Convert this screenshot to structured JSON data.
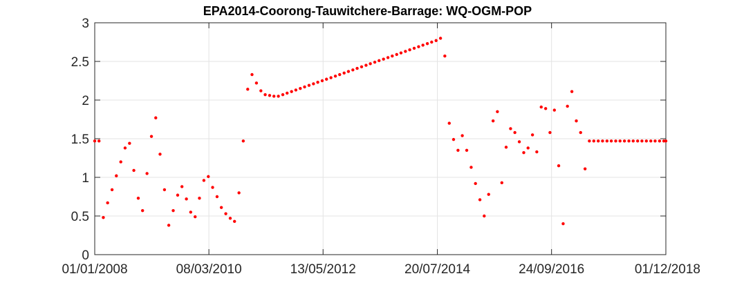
{
  "chart_data": {
    "type": "scatter",
    "title": "EPA2014-Coorong-Tauwitchere-Barrage: WQ-OGM-POP",
    "xlabel": "",
    "ylabel": "",
    "x_axis": {
      "type": "date",
      "range": [
        "2008-01-01",
        "2018-12-01"
      ],
      "ticks": [
        "2008-01-01",
        "2010-03-08",
        "2012-05-13",
        "2014-07-20",
        "2016-09-24",
        "2018-12-01"
      ],
      "tick_labels": [
        "01/01/2008",
        "08/03/2010",
        "13/05/2012",
        "20/07/2014",
        "24/09/2016",
        "01/12/2018"
      ]
    },
    "y_axis": {
      "range": [
        0,
        3
      ],
      "ticks": [
        0,
        0.5,
        1,
        1.5,
        2,
        2.5,
        3
      ],
      "tick_labels": [
        "0",
        "0.5",
        "1",
        "1.5",
        "2",
        "2.5",
        "3"
      ]
    },
    "grid": true,
    "marker_color": "#ff0000",
    "series": [
      {
        "points": [
          [
            "2008-01-01",
            1.47
          ],
          [
            "2008-01-31",
            1.47
          ],
          [
            "2008-03-01",
            0.48
          ],
          [
            "2008-03-31",
            0.67
          ],
          [
            "2008-05-01",
            0.84
          ],
          [
            "2008-05-31",
            1.02
          ],
          [
            "2008-07-01",
            1.2
          ],
          [
            "2008-07-31",
            1.38
          ],
          [
            "2008-08-31",
            1.44
          ],
          [
            "2008-09-30",
            1.09
          ],
          [
            "2008-10-31",
            0.73
          ],
          [
            "2008-11-30",
            0.57
          ],
          [
            "2008-12-31",
            1.05
          ],
          [
            "2009-01-31",
            1.53
          ],
          [
            "2009-03-02",
            1.77
          ],
          [
            "2009-04-01",
            1.3
          ],
          [
            "2009-05-02",
            0.84
          ],
          [
            "2009-06-01",
            0.38
          ],
          [
            "2009-07-02",
            0.57
          ],
          [
            "2009-08-02",
            0.77
          ],
          [
            "2009-09-01",
            0.88
          ],
          [
            "2009-10-02",
            0.72
          ],
          [
            "2009-11-01",
            0.55
          ],
          [
            "2009-12-02",
            0.49
          ],
          [
            "2010-01-01",
            0.73
          ],
          [
            "2010-02-01",
            0.96
          ],
          [
            "2010-03-04",
            1.01
          ],
          [
            "2010-04-03",
            0.87
          ],
          [
            "2010-05-04",
            0.75
          ],
          [
            "2010-06-03",
            0.61
          ],
          [
            "2010-07-04",
            0.53
          ],
          [
            "2010-08-04",
            0.47
          ],
          [
            "2010-09-03",
            0.43
          ],
          [
            "2010-10-04",
            0.8
          ],
          [
            "2010-11-03",
            1.47
          ],
          [
            "2010-12-04",
            2.14
          ],
          [
            "2011-01-03",
            2.33
          ],
          [
            "2011-02-03",
            2.22
          ],
          [
            "2011-03-06",
            2.12
          ],
          [
            "2011-04-05",
            2.07
          ],
          [
            "2011-05-06",
            2.06
          ],
          [
            "2011-06-05",
            2.05
          ],
          [
            "2011-07-06",
            2.05
          ],
          [
            "2011-08-06",
            2.07
          ],
          [
            "2011-09-05",
            2.09
          ],
          [
            "2011-10-06",
            2.11
          ],
          [
            "2011-11-05",
            2.13
          ],
          [
            "2011-12-06",
            2.15
          ],
          [
            "2012-01-05",
            2.17
          ],
          [
            "2012-02-05",
            2.19
          ],
          [
            "2012-03-07",
            2.21
          ],
          [
            "2012-04-06",
            2.23
          ],
          [
            "2012-05-07",
            2.25
          ],
          [
            "2012-06-06",
            2.27
          ],
          [
            "2012-07-07",
            2.29
          ],
          [
            "2012-08-07",
            2.31
          ],
          [
            "2012-09-06",
            2.33
          ],
          [
            "2012-10-07",
            2.35
          ],
          [
            "2012-11-06",
            2.37
          ],
          [
            "2012-12-07",
            2.39
          ],
          [
            "2013-01-06",
            2.41
          ],
          [
            "2013-02-06",
            2.43
          ],
          [
            "2013-03-09",
            2.45
          ],
          [
            "2013-04-08",
            2.47
          ],
          [
            "2013-05-09",
            2.49
          ],
          [
            "2013-06-08",
            2.51
          ],
          [
            "2013-07-09",
            2.53
          ],
          [
            "2013-08-09",
            2.55
          ],
          [
            "2013-09-08",
            2.57
          ],
          [
            "2013-10-09",
            2.59
          ],
          [
            "2013-11-08",
            2.61
          ],
          [
            "2013-12-09",
            2.63
          ],
          [
            "2014-01-08",
            2.65
          ],
          [
            "2014-02-08",
            2.67
          ],
          [
            "2014-03-11",
            2.69
          ],
          [
            "2014-04-10",
            2.71
          ],
          [
            "2014-05-11",
            2.73
          ],
          [
            "2014-06-10",
            2.75
          ],
          [
            "2014-07-11",
            2.77
          ],
          [
            "2014-08-11",
            2.8
          ],
          [
            "2014-09-10",
            2.57
          ],
          [
            "2014-10-11",
            1.7
          ],
          [
            "2014-11-10",
            1.49
          ],
          [
            "2014-12-11",
            1.35
          ],
          [
            "2015-01-10",
            1.54
          ],
          [
            "2015-02-10",
            1.35
          ],
          [
            "2015-03-13",
            1.13
          ],
          [
            "2015-04-12",
            0.92
          ],
          [
            "2015-05-13",
            0.71
          ],
          [
            "2015-06-12",
            0.5
          ],
          [
            "2015-07-13",
            0.78
          ],
          [
            "2015-08-13",
            1.73
          ],
          [
            "2015-09-12",
            1.85
          ],
          [
            "2015-10-13",
            0.93
          ],
          [
            "2015-11-12",
            1.39
          ],
          [
            "2015-12-13",
            1.63
          ],
          [
            "2016-01-12",
            1.58
          ],
          [
            "2016-02-12",
            1.46
          ],
          [
            "2016-03-14",
            1.32
          ],
          [
            "2016-04-13",
            1.38
          ],
          [
            "2016-05-14",
            1.55
          ],
          [
            "2016-06-13",
            1.33
          ],
          [
            "2016-07-14",
            1.91
          ],
          [
            "2016-08-14",
            1.89
          ],
          [
            "2016-09-13",
            1.58
          ],
          [
            "2016-10-14",
            1.87
          ],
          [
            "2016-11-13",
            1.15
          ],
          [
            "2016-12-14",
            0.4
          ],
          [
            "2017-01-13",
            1.92
          ],
          [
            "2017-02-13",
            2.11
          ],
          [
            "2017-03-16",
            1.73
          ],
          [
            "2017-04-15",
            1.58
          ],
          [
            "2017-05-16",
            1.11
          ],
          [
            "2017-06-15",
            1.47
          ],
          [
            "2017-07-16",
            1.47
          ],
          [
            "2017-08-16",
            1.47
          ],
          [
            "2017-09-15",
            1.47
          ],
          [
            "2017-10-16",
            1.47
          ],
          [
            "2017-11-15",
            1.47
          ],
          [
            "2017-12-16",
            1.47
          ],
          [
            "2018-01-15",
            1.47
          ],
          [
            "2018-02-15",
            1.47
          ],
          [
            "2018-03-18",
            1.47
          ],
          [
            "2018-04-17",
            1.47
          ],
          [
            "2018-05-18",
            1.47
          ],
          [
            "2018-06-17",
            1.47
          ],
          [
            "2018-07-18",
            1.47
          ],
          [
            "2018-08-18",
            1.47
          ],
          [
            "2018-09-17",
            1.47
          ],
          [
            "2018-10-18",
            1.47
          ],
          [
            "2018-11-17",
            1.47
          ],
          [
            "2018-12-01",
            1.47
          ]
        ]
      }
    ]
  }
}
